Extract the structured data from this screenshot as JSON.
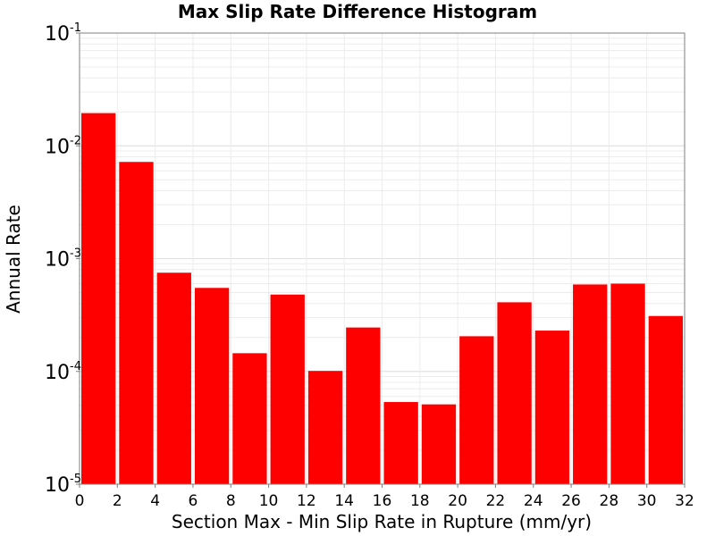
{
  "chart_data": {
    "type": "bar",
    "title": "Max Slip Rate Difference Histogram",
    "xlabel": "Section Max - Min Slip Rate in Rupture (mm/yr)",
    "ylabel": "Annual Rate",
    "x_range": [
      0,
      32
    ],
    "y_range": [
      1e-05,
      0.1
    ],
    "y_scale": "log",
    "grid": true,
    "bar_color": "#ff0000",
    "bin_width": 2,
    "x_ticks": [
      "0",
      "2",
      "4",
      "6",
      "8",
      "10",
      "12",
      "14",
      "16",
      "18",
      "20",
      "22",
      "24",
      "26",
      "28",
      "30",
      "32"
    ],
    "y_ticks": [
      {
        "base": "10",
        "exp": "-5"
      },
      {
        "base": "10",
        "exp": "-4"
      },
      {
        "base": "10",
        "exp": "-3"
      },
      {
        "base": "10",
        "exp": "-2"
      },
      {
        "base": "10",
        "exp": "-1"
      }
    ],
    "bins": [
      {
        "start": 0,
        "end": 2,
        "value": 0.0195
      },
      {
        "start": 2,
        "end": 4,
        "value": 0.0072
      },
      {
        "start": 4,
        "end": 6,
        "value": 0.00075
      },
      {
        "start": 6,
        "end": 8,
        "value": 0.00055
      },
      {
        "start": 8,
        "end": 10,
        "value": 0.000145
      },
      {
        "start": 10,
        "end": 12,
        "value": 0.00048
      },
      {
        "start": 12,
        "end": 14,
        "value": 0.000101
      },
      {
        "start": 14,
        "end": 16,
        "value": 0.000245
      },
      {
        "start": 16,
        "end": 18,
        "value": 5.35e-05
      },
      {
        "start": 18,
        "end": 20,
        "value": 5.1e-05
      },
      {
        "start": 20,
        "end": 22,
        "value": 0.000205
      },
      {
        "start": 22,
        "end": 24,
        "value": 0.00041
      },
      {
        "start": 24,
        "end": 26,
        "value": 0.00023
      },
      {
        "start": 26,
        "end": 28,
        "value": 0.00059
      },
      {
        "start": 28,
        "end": 30,
        "value": 0.0006
      },
      {
        "start": 30,
        "end": 32,
        "value": 0.00031
      }
    ]
  }
}
